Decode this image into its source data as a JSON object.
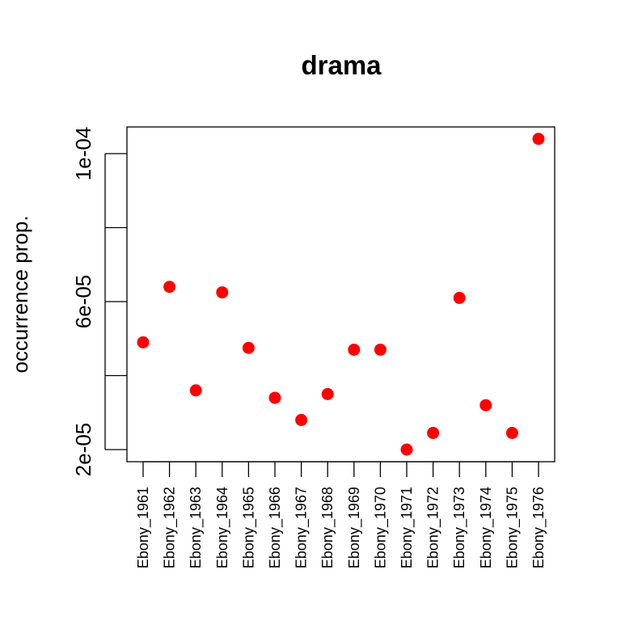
{
  "chart_data": {
    "type": "scatter",
    "title": "drama",
    "xlabel": "",
    "ylabel": "occurrence prop.",
    "categories": [
      "Ebony_1961",
      "Ebony_1962",
      "Ebony_1963",
      "Ebony_1964",
      "Ebony_1965",
      "Ebony_1966",
      "Ebony_1967",
      "Ebony_1968",
      "Ebony_1969",
      "Ebony_1970",
      "Ebony_1971",
      "Ebony_1972",
      "Ebony_1973",
      "Ebony_1974",
      "Ebony_1975",
      "Ebony_1976"
    ],
    "values": [
      4.9e-05,
      6.4e-05,
      3.6e-05,
      6.25e-05,
      4.75e-05,
      3.4e-05,
      2.8e-05,
      3.5e-05,
      4.7e-05,
      4.7e-05,
      2e-05,
      2.45e-05,
      6.1e-05,
      3.2e-05,
      2.45e-05,
      0.000104
    ],
    "ylim": [
      1.8e-05,
      0.000107
    ],
    "yticks": [
      2e-05,
      4e-05,
      6e-05,
      8e-05,
      0.0001
    ],
    "ytick_labels": [
      "2e-05",
      "",
      "6e-05",
      "",
      "1e-04"
    ],
    "point_color": "#ff0000",
    "grid": false,
    "legend": "none"
  }
}
